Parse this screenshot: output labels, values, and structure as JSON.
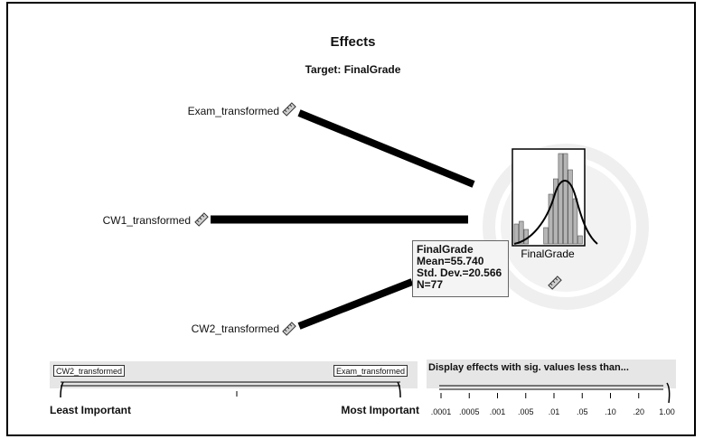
{
  "header": {
    "title": "Effects",
    "subtitle": "Target: FinalGrade"
  },
  "predictors": [
    {
      "name": "Exam_transformed",
      "icon": "ruler-icon"
    },
    {
      "name": "CW1_transformed",
      "icon": "ruler-icon"
    },
    {
      "name": "CW2_transformed",
      "icon": "ruler-icon"
    }
  ],
  "target_node": {
    "label": "FinalGrade",
    "icon": "ruler-icon",
    "histogram_bar_heights": [
      0.22,
      0.25,
      0.16,
      0.0,
      0.0,
      0.0,
      0.18,
      0.55,
      0.72,
      1.0,
      1.0,
      0.82,
      0.5,
      0.09
    ]
  },
  "tooltip": {
    "line1": "FinalGrade",
    "line2": "Mean=55.740",
    "line3": "Std. Dev.=20.566",
    "line4": "N=77"
  },
  "importance_scale": {
    "left_box": "CW2_transformed",
    "right_box": "Exam_transformed",
    "left_label": "Least Important",
    "right_label": "Most Important"
  },
  "threshold_slider": {
    "title": "Display effects with sig. values less than...",
    "ticks": [
      ".0001",
      ".0005",
      ".001",
      ".005",
      ".01",
      ".05",
      ".10",
      ".20",
      "1.00"
    ],
    "selected": "1.00"
  },
  "colors": {
    "line": "#000000",
    "ring_outer": "#ececec",
    "panel": "#e6e6e6",
    "histogram_bar": "#b5b5b5"
  }
}
